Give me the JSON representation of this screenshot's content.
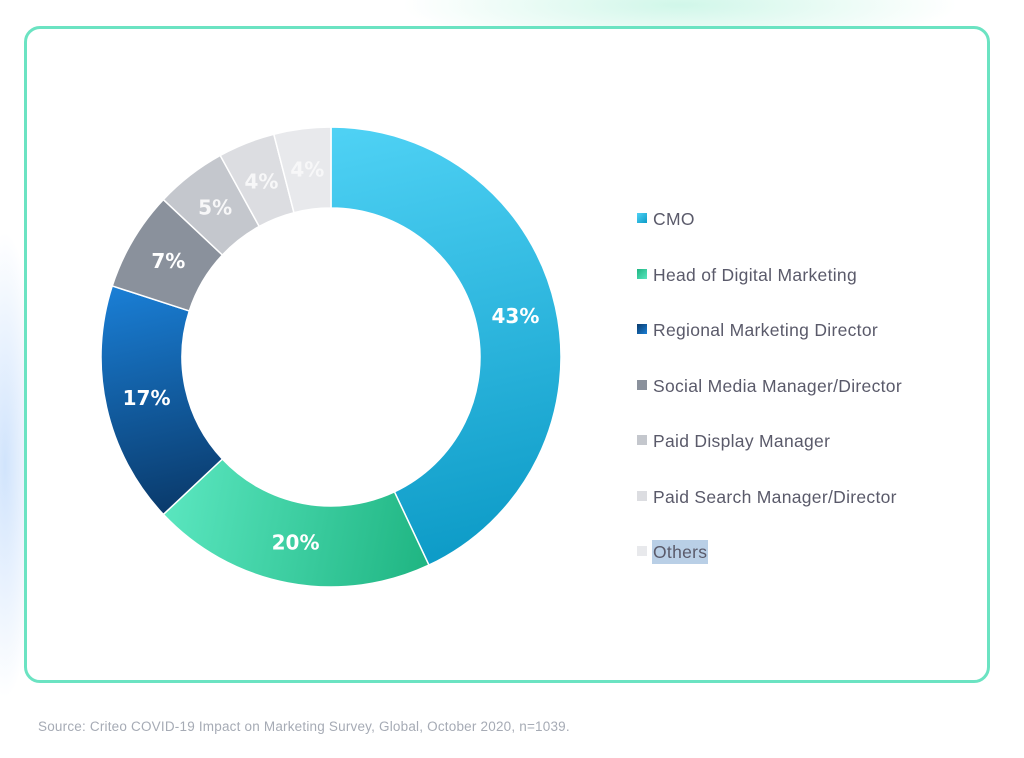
{
  "chart_data": {
    "type": "pie",
    "donut": true,
    "categories": [
      "CMO",
      "Head of Digital Marketing",
      "Regional Marketing Director",
      "Social Media Manager/Director",
      "Paid Display Manager",
      "Paid Search Manager/Director",
      "Others"
    ],
    "values": [
      43,
      20,
      17,
      7,
      5,
      4,
      4
    ],
    "labels": [
      "43%",
      "20%",
      "17%",
      "7%",
      "5%",
      "4%",
      "4%"
    ],
    "colors": [
      "#1aa6d4",
      "#2ec99a",
      "#0f4e8a",
      "#8a919c",
      "#c4c7cd",
      "#dcdde1",
      "#e8e9ec"
    ],
    "gradients": [
      [
        "#4fd2f5",
        "#0d9bc7"
      ],
      [
        "#1fb582",
        "#5ae6bf"
      ],
      [
        "#0a3a6b",
        "#1a7fd6"
      ],
      [
        "#8a919c",
        "#8a919c"
      ],
      [
        "#c4c7cd",
        "#c4c7cd"
      ],
      [
        "#dcdde1",
        "#dcdde1"
      ],
      [
        "#e8e9ec",
        "#e8e9ec"
      ]
    ],
    "legend_position": "right",
    "selected_legend_item": 6
  },
  "source_note": "Source: Criteo COVID-19 Impact on Marketing Survey, Global, October 2020, n=1039."
}
